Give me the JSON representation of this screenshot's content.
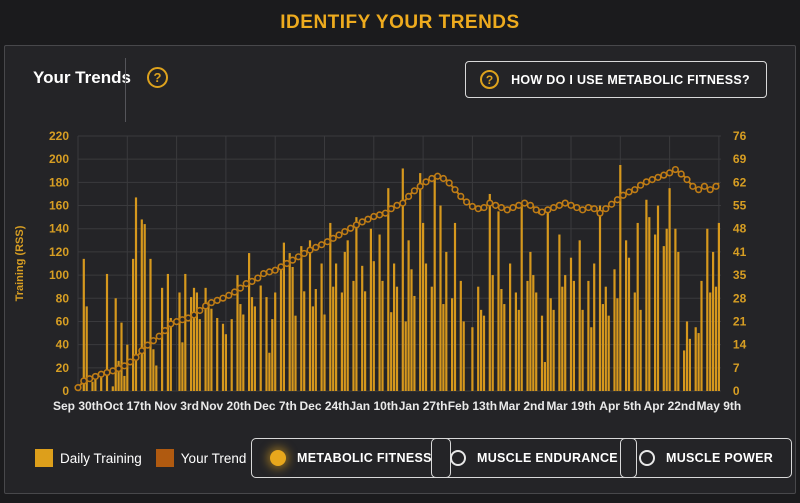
{
  "header": {
    "title": "IDENTIFY YOUR TRENDS"
  },
  "panel": {
    "title": "Your Trends",
    "help_icon": "?",
    "help_button": {
      "icon": "?",
      "label": "HOW DO I USE METABOLIC FITNESS?"
    }
  },
  "legend": {
    "items": [
      {
        "label": "Daily Training",
        "color": "#dd9f1b"
      },
      {
        "label": "Your Trend",
        "color": "#b05a10"
      }
    ]
  },
  "metric_buttons": [
    {
      "label": "METABOLIC FITNESS",
      "active": true
    },
    {
      "label": "MUSCLE ENDURANCE",
      "active": false
    },
    {
      "label": "MUSCLE POWER",
      "active": false
    }
  ],
  "colors": {
    "page_bg": "#1b1b1d",
    "panel_bg": "#242427",
    "accent_gold": "#e8a71c",
    "bar": "#d6981d",
    "trend_line": "#c07d15",
    "axis_text": "#d79e23",
    "x_label_text": "#e9e9e9",
    "grid": "#3a3a3d"
  },
  "chart_data": {
    "type": "bar+line",
    "ylabel_left": "Training (RSS)",
    "left_axis": {
      "min": 0,
      "max": 220,
      "ticks": [
        0,
        20,
        40,
        60,
        80,
        100,
        120,
        140,
        160,
        180,
        200,
        220
      ]
    },
    "right_axis": {
      "min": 0,
      "max": 76,
      "ticks": [
        0,
        7,
        14,
        21,
        28,
        35,
        41,
        48,
        55,
        62,
        69,
        76
      ]
    },
    "grid": true,
    "num_days": 222,
    "x_ticks": [
      {
        "day": 0,
        "label": "Sep 30th"
      },
      {
        "day": 17,
        "label": "Oct 17th"
      },
      {
        "day": 34,
        "label": "Nov 3rd"
      },
      {
        "day": 51,
        "label": "Nov 20th"
      },
      {
        "day": 68,
        "label": "Dec 7th"
      },
      {
        "day": 85,
        "label": "Dec 24th"
      },
      {
        "day": 102,
        "label": "Jan 10th"
      },
      {
        "day": 119,
        "label": "Jan 27th"
      },
      {
        "day": 136,
        "label": "Feb 13th"
      },
      {
        "day": 153,
        "label": "Mar 2nd"
      },
      {
        "day": 170,
        "label": "Mar 19th"
      },
      {
        "day": 187,
        "label": "Apr 5th"
      },
      {
        "day": 204,
        "label": "Apr 22nd"
      },
      {
        "day": 221,
        "label": "May 9th"
      }
    ],
    "series": [
      {
        "name": "Daily Training",
        "type": "bar",
        "axis": "left",
        "color": "#d6981d",
        "values": [
          2,
          0,
          114,
          73,
          0,
          8,
          12,
          0,
          17,
          0,
          101,
          0,
          4,
          80,
          26,
          59,
          13,
          40,
          0,
          114,
          167,
          0,
          148,
          144,
          0,
          114,
          36,
          22,
          0,
          89,
          0,
          101,
          63,
          0,
          0,
          85,
          42,
          101,
          0,
          81,
          89,
          85,
          62,
          0,
          89,
          77,
          71,
          0,
          63,
          0,
          58,
          49,
          0,
          62,
          0,
          100,
          75,
          66,
          0,
          119,
          81,
          73,
          0,
          91,
          0,
          81,
          33,
          62,
          85,
          0,
          110,
          128,
          0,
          119,
          107,
          65,
          0,
          125,
          86,
          0,
          130,
          73,
          88,
          0,
          110,
          66,
          0,
          145,
          90,
          110,
          0,
          85,
          120,
          130,
          0,
          95,
          150,
          0,
          108,
          86,
          0,
          140,
          112,
          0,
          135,
          95,
          0,
          175,
          68,
          110,
          90,
          0,
          192,
          60,
          130,
          105,
          82,
          0,
          188,
          145,
          110,
          0,
          90,
          186,
          0,
          160,
          75,
          120,
          0,
          80,
          145,
          0,
          95,
          60,
          0,
          0,
          55,
          0,
          90,
          70,
          65,
          0,
          170,
          100,
          0,
          155,
          88,
          75,
          0,
          110,
          0,
          85,
          70,
          160,
          0,
          95,
          120,
          100,
          85,
          0,
          65,
          25,
          155,
          80,
          70,
          0,
          135,
          90,
          100,
          0,
          115,
          95,
          0,
          130,
          70,
          0,
          95,
          55,
          110,
          0,
          160,
          75,
          90,
          65,
          0,
          105,
          80,
          195,
          0,
          130,
          115,
          0,
          85,
          145,
          70,
          0,
          165,
          150,
          0,
          135,
          160,
          0,
          125,
          140,
          175,
          0,
          140,
          120,
          0,
          35,
          60,
          45,
          0,
          55,
          50,
          95,
          0,
          140,
          85,
          120,
          90,
          145
        ]
      },
      {
        "name": "Your Trend",
        "type": "line",
        "axis": "right",
        "color": "#c07d15",
        "marker": "ring",
        "control_points": [
          [
            0,
            1
          ],
          [
            2,
            3
          ],
          [
            5,
            4
          ],
          [
            8,
            5
          ],
          [
            12,
            6
          ],
          [
            15,
            7
          ],
          [
            17,
            8
          ],
          [
            20,
            10
          ],
          [
            23,
            13
          ],
          [
            26,
            15
          ],
          [
            29,
            17
          ],
          [
            32,
            20
          ],
          [
            35,
            21
          ],
          [
            39,
            22
          ],
          [
            42,
            24
          ],
          [
            45,
            26
          ],
          [
            48,
            27
          ],
          [
            51,
            28
          ],
          [
            55,
            30
          ],
          [
            58,
            32
          ],
          [
            61,
            33
          ],
          [
            64,
            35
          ],
          [
            68,
            36
          ],
          [
            72,
            38
          ],
          [
            76,
            40
          ],
          [
            80,
            42
          ],
          [
            85,
            44
          ],
          [
            89,
            46
          ],
          [
            93,
            48
          ],
          [
            97,
            50
          ],
          [
            102,
            52
          ],
          [
            106,
            53
          ],
          [
            109,
            55
          ],
          [
            112,
            56
          ],
          [
            115,
            59
          ],
          [
            118,
            61
          ],
          [
            121,
            63
          ],
          [
            124,
            64
          ],
          [
            127,
            63
          ],
          [
            130,
            60
          ],
          [
            133,
            57
          ],
          [
            136,
            55
          ],
          [
            139,
            54
          ],
          [
            142,
            56
          ],
          [
            145,
            55
          ],
          [
            148,
            54
          ],
          [
            151,
            55
          ],
          [
            154,
            56
          ],
          [
            157,
            55
          ],
          [
            159,
            53
          ],
          [
            162,
            54
          ],
          [
            165,
            55
          ],
          [
            168,
            56
          ],
          [
            171,
            55
          ],
          [
            174,
            54
          ],
          [
            177,
            55
          ],
          [
            180,
            53
          ],
          [
            183,
            55
          ],
          [
            186,
            57
          ],
          [
            189,
            59
          ],
          [
            192,
            60
          ],
          [
            195,
            62
          ],
          [
            198,
            63
          ],
          [
            201,
            64
          ],
          [
            204,
            65
          ],
          [
            206,
            66
          ],
          [
            209,
            64
          ],
          [
            212,
            61
          ],
          [
            214,
            60
          ],
          [
            216,
            61
          ],
          [
            218,
            60
          ],
          [
            220,
            61
          ],
          [
            221,
            62
          ]
        ]
      }
    ]
  }
}
